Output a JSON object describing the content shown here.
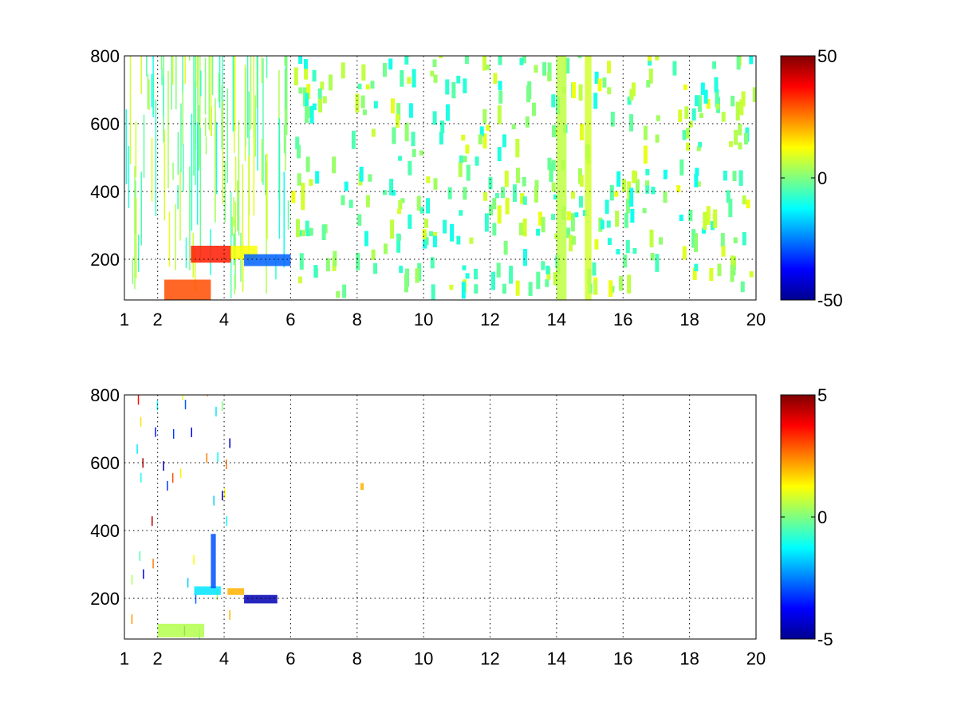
{
  "chart_data": [
    {
      "type": "heatmap",
      "title": "",
      "xlabel": "",
      "ylabel": "",
      "xlim": [
        1,
        20
      ],
      "ylim": [
        80,
        800
      ],
      "grid": true,
      "x_ticks": [
        1,
        2,
        4,
        6,
        8,
        10,
        12,
        14,
        16,
        18,
        20
      ],
      "y_ticks": [
        200,
        400,
        600,
        800
      ],
      "colormap": "jet",
      "colorbar": {
        "min": -50,
        "max": 50,
        "ticks": [
          -50,
          0,
          50
        ]
      },
      "features": [
        {
          "x": [
            2.2,
            3.6
          ],
          "y": [
            80,
            140
          ],
          "value": 30
        },
        {
          "x": [
            3.0,
            4.2
          ],
          "y": [
            190,
            240
          ],
          "value": 35
        },
        {
          "x": [
            4.2,
            5.0
          ],
          "y": [
            200,
            240
          ],
          "value": 12
        },
        {
          "x": [
            4.6,
            6.0
          ],
          "y": [
            180,
            215
          ],
          "value": -28
        },
        {
          "x": [
            14.0,
            14.3
          ],
          "y": [
            80,
            800
          ],
          "value": 6
        },
        {
          "x": [
            14.85,
            15.05
          ],
          "y": [
            80,
            800
          ],
          "value": 8
        }
      ]
    },
    {
      "type": "heatmap",
      "title": "",
      "xlabel": "",
      "ylabel": "",
      "xlim": [
        1,
        20
      ],
      "ylim": [
        80,
        800
      ],
      "grid": true,
      "x_ticks": [
        1,
        2,
        4,
        6,
        8,
        10,
        12,
        14,
        16,
        18,
        20
      ],
      "y_ticks": [
        200,
        400,
        600,
        800
      ],
      "colormap": "jet",
      "colorbar": {
        "min": -5,
        "max": 5,
        "ticks": [
          -5,
          0,
          5
        ]
      },
      "features": [
        {
          "x": [
            2.0,
            3.4
          ],
          "y": [
            85,
            125
          ],
          "value": 0.5
        },
        {
          "x": [
            3.1,
            3.9
          ],
          "y": [
            210,
            235
          ],
          "value": -1.5
        },
        {
          "x": [
            4.1,
            4.6
          ],
          "y": [
            210,
            230
          ],
          "value": 2.0
        },
        {
          "x": [
            4.6,
            5.6
          ],
          "y": [
            185,
            210
          ],
          "value": -4.5
        },
        {
          "x": [
            3.6,
            3.75
          ],
          "y": [
            230,
            390
          ],
          "value": -3.0
        },
        {
          "x": [
            8.1,
            8.2
          ],
          "y": [
            520,
            540
          ],
          "value": 2.0
        }
      ]
    }
  ]
}
